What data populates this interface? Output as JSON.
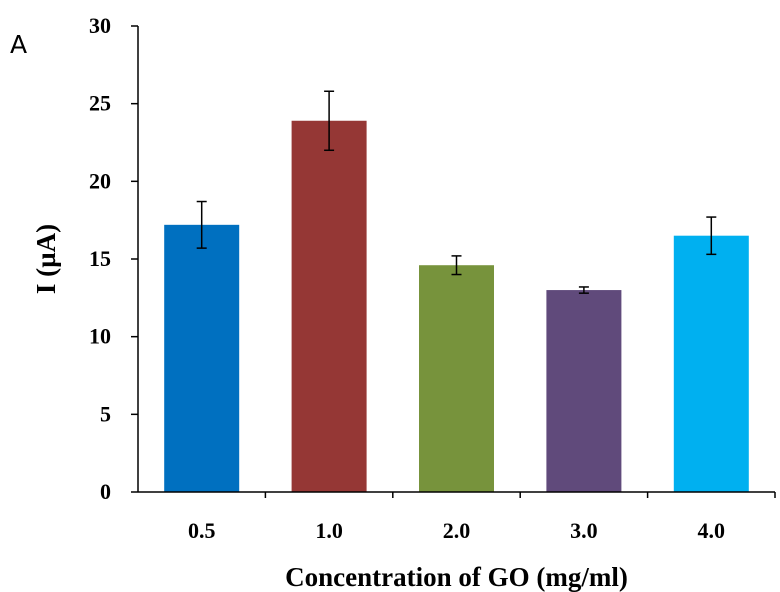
{
  "panel_label": "A",
  "chart_data": {
    "type": "bar",
    "categories": [
      "0.5",
      "1.0",
      "2.0",
      "3.0",
      "4.0"
    ],
    "values": [
      17.2,
      23.9,
      14.6,
      13.0,
      16.5
    ],
    "errors": [
      1.5,
      1.9,
      0.6,
      0.2,
      1.2
    ],
    "colors": [
      "#0070c0",
      "#953735",
      "#77933c",
      "#604a7b",
      "#00b0f0"
    ],
    "xlabel": "Concentration  of GO (mg/ml)",
    "ylabel": "I (µA)",
    "ylim": [
      0,
      30
    ],
    "yticks": [
      "0",
      "5",
      "10",
      "15",
      "20",
      "25",
      "30"
    ],
    "grid": false
  }
}
